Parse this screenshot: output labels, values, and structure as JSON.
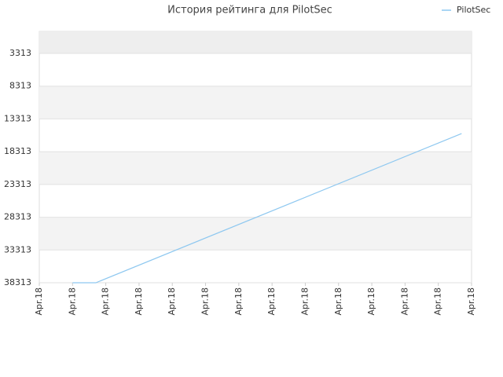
{
  "chart_data": {
    "type": "line",
    "title": "История рейтинга для PilotSec",
    "x": [
      1,
      1.7,
      12.7
    ],
    "series": [
      {
        "name": "PilotSec",
        "color": "#8ec8f0",
        "values": [
          38313,
          38313,
          15540
        ]
      }
    ],
    "xlim": [
      0,
      13
    ],
    "xticks": [
      {
        "value": 0,
        "label": "Apr.18"
      },
      {
        "value": 1,
        "label": "Apr.18"
      },
      {
        "value": 2,
        "label": "Apr.18"
      },
      {
        "value": 3,
        "label": "Apr.18"
      },
      {
        "value": 4,
        "label": "Apr.18"
      },
      {
        "value": 5,
        "label": "Apr.18"
      },
      {
        "value": 6,
        "label": "Apr.18"
      },
      {
        "value": 7,
        "label": "Apr.18"
      },
      {
        "value": 8,
        "label": "Apr.18"
      },
      {
        "value": 9,
        "label": "Apr.18"
      },
      {
        "value": 10,
        "label": "Apr.18"
      },
      {
        "value": 11,
        "label": "Apr.18"
      },
      {
        "value": 12,
        "label": "Apr.18"
      },
      {
        "value": 13,
        "label": "Apr.18"
      }
    ],
    "ylim": [
      38313,
      -43
    ],
    "yticks": [
      3313,
      8313,
      13313,
      18313,
      23313,
      28313,
      33313,
      38313
    ],
    "grid": true,
    "legend": "top-right"
  }
}
